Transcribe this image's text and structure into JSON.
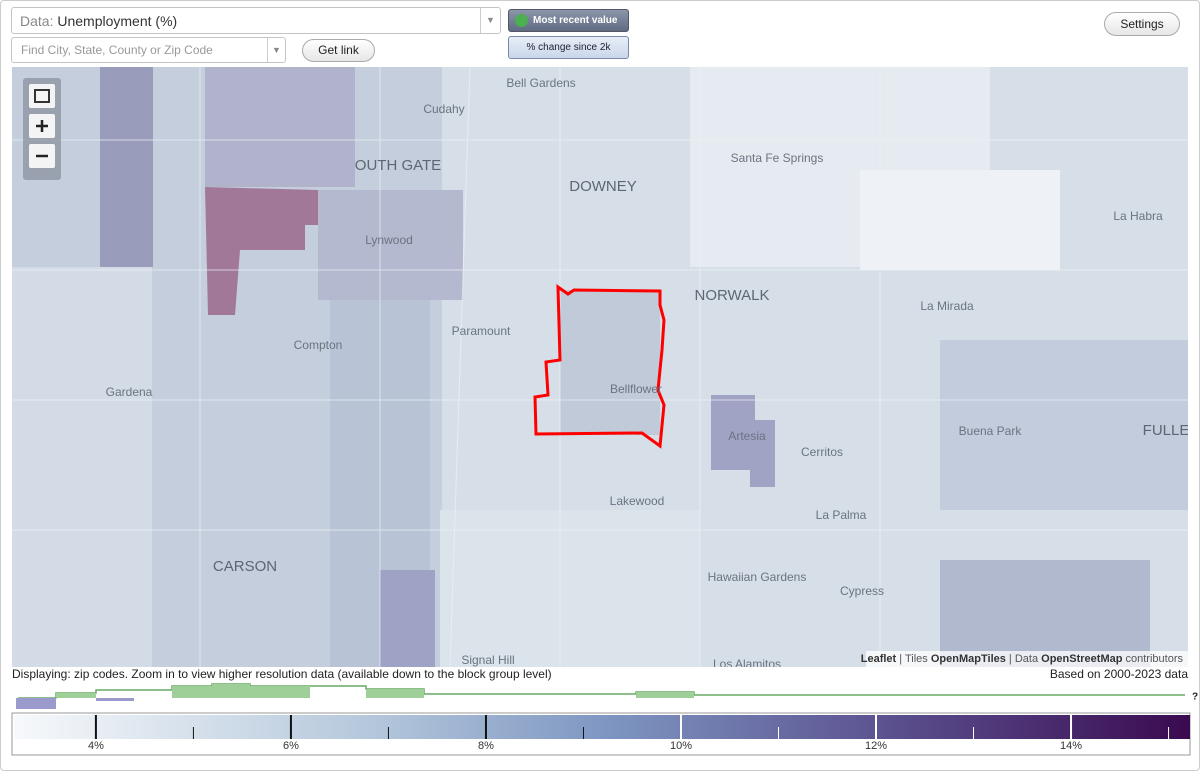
{
  "controls": {
    "data_label": "Data:",
    "data_value": "Unemployment (%)",
    "search_placeholder": "Find City, State, County or Zip Code",
    "get_link": "Get link",
    "toggles": [
      "Most recent value",
      "% change since 2k"
    ],
    "settings": "Settings"
  },
  "map": {
    "places": [
      "Bell Gardens",
      "Cudahy",
      "OUTH GATE",
      "DOWNEY",
      "Santa Fe Springs",
      "Lynwood",
      "NORWALK",
      "La Habra",
      "La Mirada",
      "Paramount",
      "Compton",
      "Bellflower",
      "Gardena",
      "Artesia",
      "Cerritos",
      "Buena Park",
      "FULLE",
      "Lakewood",
      "La Palma",
      "CARSON",
      "Hawaiian Gardens",
      "Cypress",
      "Signal Hill",
      "Los Alamitos"
    ],
    "attribution": {
      "leaflet": "Leaflet",
      "tiles_label": "Tiles",
      "tiles": "OpenMapTiles",
      "data_label": "Data",
      "data": "OpenStreetMap",
      "contributors": "contributors"
    }
  },
  "status": {
    "displaying": "Displaying: zip codes. Zoom in to view higher resolution data (available down to the block group level)",
    "based_on": "Based on 2000-2023 data"
  },
  "legend": {
    "range": [
      3.16,
      15.22
    ],
    "ticks": [
      {
        "value": 4,
        "label": "4%"
      },
      {
        "value": 6,
        "label": "6%"
      },
      {
        "value": 8,
        "label": "8%"
      },
      {
        "value": 10,
        "label": "10%"
      },
      {
        "value": 12,
        "label": "12%"
      },
      {
        "value": 14,
        "label": "14%"
      }
    ],
    "minor_ticks": [
      5,
      7,
      9,
      11,
      13,
      15
    ],
    "unknown": "?"
  }
}
